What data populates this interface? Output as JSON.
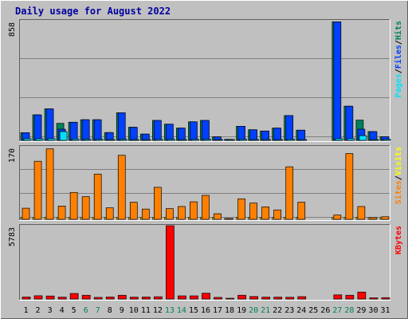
{
  "title": "Daily usage for August 2022",
  "colors": {
    "background": "#c0c0c0",
    "plot": "#c0c0c0",
    "grid": "#808080",
    "title": "#0000a0",
    "hits": "#00805c",
    "files": "#0040ff",
    "pages": "#00e0ff",
    "visits": "#ffff00",
    "sites": "#ff8000",
    "kbytes": "#ff0000",
    "weekday": "#000000",
    "weekend": "#00805c"
  },
  "chart_data": [
    {
      "type": "bar",
      "panel": "hits-files-pages",
      "ymax_label": "858",
      "ylim": [
        0,
        858
      ],
      "legend": [
        {
          "key": "pages",
          "text": "Pages"
        },
        {
          "key": "files",
          "text": "Files"
        },
        {
          "key": "hits",
          "text": "Hits"
        }
      ],
      "legend_separators": [
        "/",
        "/"
      ],
      "categories": [
        "1",
        "2",
        "3",
        "4",
        "5",
        "6",
        "7",
        "8",
        "9",
        "10",
        "11",
        "12",
        "13",
        "14",
        "15",
        "16",
        "17",
        "18",
        "19",
        "20",
        "21",
        "22",
        "23",
        "24",
        "25",
        "26",
        "27",
        "28",
        "29",
        "30",
        "31"
      ],
      "series": [
        {
          "name": "Hits",
          "key": "hits",
          "values": [
            55,
            183,
            226,
            122,
            130,
            148,
            148,
            56,
            198,
            94,
            45,
            143,
            116,
            88,
            133,
            143,
            25,
            7,
            101,
            76,
            67,
            88,
            178,
            73,
            0,
            0,
            850,
            245,
            145,
            63,
            26
          ]
        },
        {
          "name": "Files",
          "key": "files",
          "values": [
            55,
            183,
            226,
            80,
            130,
            148,
            148,
            56,
            198,
            94,
            45,
            143,
            116,
            88,
            133,
            143,
            25,
            7,
            101,
            76,
            67,
            88,
            178,
            73,
            0,
            0,
            850,
            245,
            80,
            63,
            26
          ]
        },
        {
          "name": "Pages",
          "key": "pages",
          "values": [
            12,
            12,
            12,
            63,
            10,
            8,
            8,
            6,
            8,
            6,
            6,
            8,
            8,
            6,
            8,
            8,
            5,
            2,
            8,
            6,
            6,
            6,
            8,
            6,
            0,
            0,
            12,
            12,
            34,
            6,
            8
          ]
        }
      ]
    },
    {
      "type": "bar",
      "panel": "visits-sites",
      "ymax_label": "170",
      "ylim": [
        0,
        170
      ],
      "legend": [
        {
          "key": "sites",
          "text": "Sites"
        },
        {
          "key": "visits",
          "text": "Visits"
        }
      ],
      "legend_separators": [
        "/"
      ],
      "categories": [
        "1",
        "2",
        "3",
        "4",
        "5",
        "6",
        "7",
        "8",
        "9",
        "10",
        "11",
        "12",
        "13",
        "14",
        "15",
        "16",
        "17",
        "18",
        "19",
        "20",
        "21",
        "22",
        "23",
        "24",
        "25",
        "26",
        "27",
        "28",
        "29",
        "30",
        "31"
      ],
      "series": [
        {
          "name": "Visits",
          "key": "visits",
          "values": [
            4,
            4,
            4,
            4,
            4,
            4,
            4,
            4,
            4,
            4,
            4,
            4,
            4,
            4,
            4,
            4,
            4,
            2,
            4,
            4,
            4,
            4,
            4,
            4,
            0,
            0,
            4,
            4,
            4,
            4,
            4
          ]
        },
        {
          "name": "Sites",
          "key": "sites",
          "values": [
            26,
            136,
            165,
            31,
            63,
            53,
            106,
            27,
            150,
            40,
            24,
            75,
            25,
            30,
            41,
            56,
            13,
            2,
            48,
            38,
            29,
            22,
            123,
            40,
            0,
            0,
            10,
            154,
            30,
            4,
            6
          ]
        }
      ]
    },
    {
      "type": "bar",
      "panel": "kbytes",
      "ymax_label": "5783",
      "ylim": [
        0,
        5783
      ],
      "legend": [
        {
          "key": "kbytes",
          "text": "KBytes"
        }
      ],
      "legend_separators": [],
      "categories": [
        "1",
        "2",
        "3",
        "4",
        "5",
        "6",
        "7",
        "8",
        "9",
        "10",
        "11",
        "12",
        "13",
        "14",
        "15",
        "16",
        "17",
        "18",
        "19",
        "20",
        "21",
        "22",
        "23",
        "24",
        "25",
        "26",
        "27",
        "28",
        "29",
        "30",
        "31"
      ],
      "series": [
        {
          "name": "KBytes",
          "key": "kbytes",
          "values": [
            160,
            260,
            240,
            150,
            440,
            300,
            130,
            160,
            300,
            150,
            160,
            180,
            5783,
            250,
            250,
            460,
            130,
            50,
            300,
            200,
            150,
            150,
            140,
            190,
            0,
            0,
            330,
            300,
            550,
            100,
            110
          ]
        }
      ]
    }
  ],
  "x_axis": {
    "labels": [
      "1",
      "2",
      "3",
      "4",
      "5",
      "6",
      "7",
      "8",
      "9",
      "10",
      "11",
      "12",
      "13",
      "14",
      "15",
      "16",
      "17",
      "18",
      "19",
      "20",
      "21",
      "22",
      "23",
      "24",
      "25",
      "26",
      "27",
      "28",
      "29",
      "30",
      "31"
    ],
    "weekend": [
      6,
      7,
      13,
      14,
      20,
      21,
      27,
      28
    ]
  }
}
